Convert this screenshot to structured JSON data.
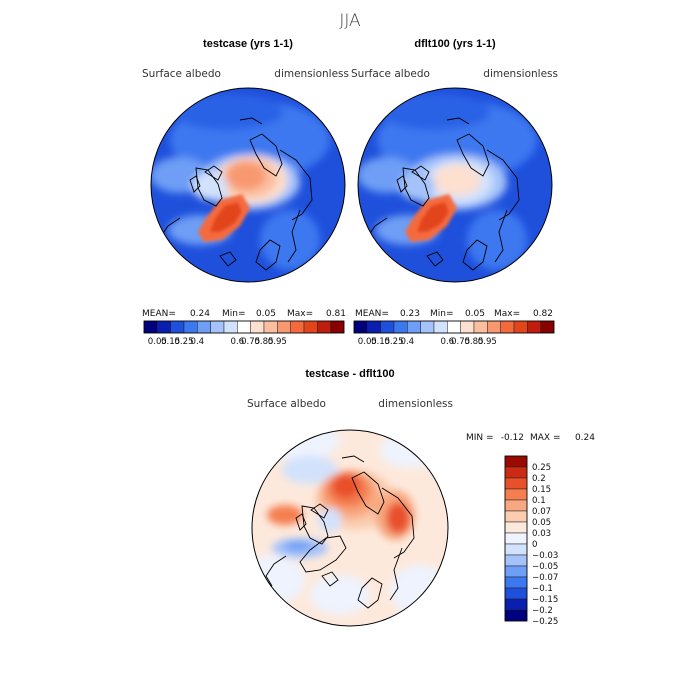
{
  "figure_title": "JJA",
  "chart_data": [
    {
      "type": "heatmap",
      "title": "testcase (yrs 1-1)",
      "field": "Surface albedo",
      "units": "dimensionless",
      "stats": {
        "mean_label": "MEAN=",
        "mean": "0.24",
        "min_label": "Min=",
        "min": "0.05",
        "max_label": "Max=",
        "max": "0.81"
      },
      "colorbar_ticks": [
        "0.05",
        "0.15",
        "0.25",
        "0.4",
        "0.6",
        "0.75",
        "0.85",
        "0.95"
      ]
    },
    {
      "type": "heatmap",
      "title": "dflt100 (yrs 1-1)",
      "field": "Surface albedo",
      "units": "dimensionless",
      "stats": {
        "mean_label": "MEAN=",
        "mean": "0.23",
        "min_label": "Min=",
        "min": "0.05",
        "max_label": "Max=",
        "max": "0.82"
      },
      "colorbar_ticks": [
        "0.05",
        "0.15",
        "0.25",
        "0.4",
        "0.6",
        "0.75",
        "0.85",
        "0.95"
      ]
    },
    {
      "type": "heatmap",
      "title": "testcase - dflt100",
      "field": "Surface albedo",
      "units": "dimensionless",
      "stats": {
        "min_label": "MIN =",
        "min": "-0.12",
        "max_label": "MAX =",
        "max": "0.24"
      },
      "colorbar_ticks": [
        "0.25",
        "0.2",
        "0.15",
        "0.1",
        "0.07",
        "0.05",
        "0.03",
        "0",
        "−0.03",
        "−0.05",
        "−0.07",
        "−0.1",
        "−0.15",
        "−0.2",
        "−0.25"
      ]
    }
  ],
  "colors": {
    "abs_scale": [
      "#00007f",
      "#0a1fb0",
      "#1e50dc",
      "#3c78f0",
      "#6e9ef5",
      "#a5c3fa",
      "#d2e2fc",
      "#ffffff",
      "#fde0d0",
      "#fbbfa0",
      "#f89870",
      "#f56a3c",
      "#e2441c",
      "#bf1e0e",
      "#880000"
    ],
    "diff_scale": [
      "#00007f",
      "#0a1fb0",
      "#1e50dc",
      "#3c78f0",
      "#6e9ef5",
      "#a5c3fa",
      "#d2e2fc",
      "#eef3fd",
      "#fde9dc",
      "#fbcdb0",
      "#f8a880",
      "#f47e50",
      "#e8502a",
      "#cc2a12",
      "#9a0a00"
    ],
    "coast": "#000000"
  }
}
